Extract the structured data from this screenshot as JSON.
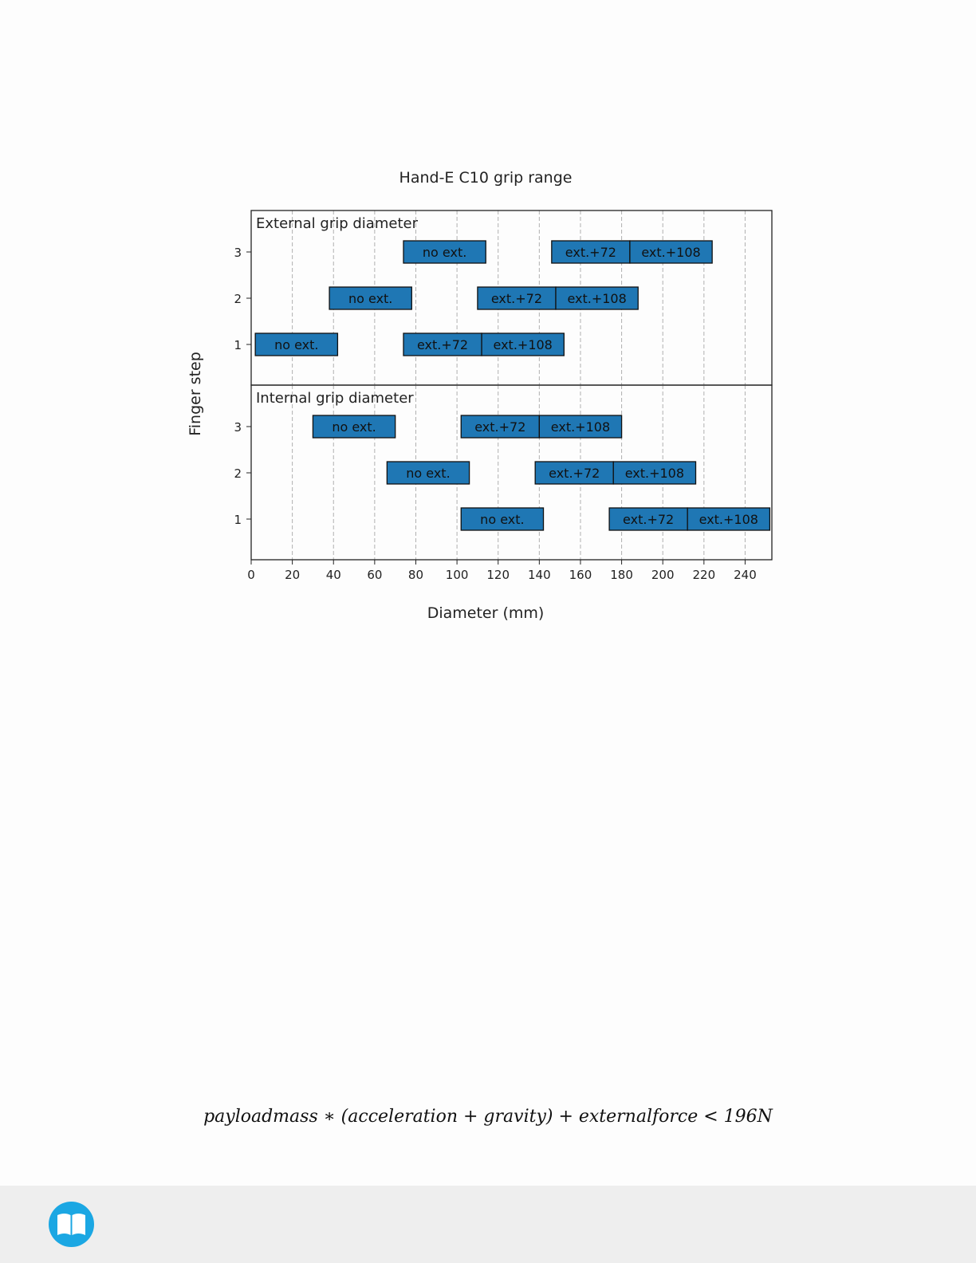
{
  "chart_data": {
    "type": "bar",
    "orientation": "horizontal-ranges",
    "title": "Hand-E C10 grip range",
    "xlabel": "Diameter (mm)",
    "ylabel": "Finger step",
    "xlim": [
      0,
      253
    ],
    "xticks": [
      0,
      20,
      40,
      60,
      80,
      100,
      120,
      140,
      160,
      180,
      200,
      220,
      240
    ],
    "yticks": [
      1,
      2,
      3
    ],
    "grid": "vertical dashed",
    "bar_color": "#1f77b4",
    "panels": [
      {
        "label": "External grip diameter",
        "bars": [
          {
            "step": 3,
            "start": 74,
            "end": 114,
            "label": "no ext."
          },
          {
            "step": 3,
            "start": 146,
            "end": 184,
            "label": "ext.+72"
          },
          {
            "step": 3,
            "start": 184,
            "end": 224,
            "label": "ext.+108"
          },
          {
            "step": 2,
            "start": 38,
            "end": 78,
            "label": "no ext."
          },
          {
            "step": 2,
            "start": 110,
            "end": 148,
            "label": "ext.+72"
          },
          {
            "step": 2,
            "start": 148,
            "end": 188,
            "label": "ext.+108"
          },
          {
            "step": 1,
            "start": 2,
            "end": 42,
            "label": "no ext."
          },
          {
            "step": 1,
            "start": 74,
            "end": 112,
            "label": "ext.+72"
          },
          {
            "step": 1,
            "start": 112,
            "end": 152,
            "label": "ext.+108"
          }
        ]
      },
      {
        "label": "Internal grip diameter",
        "bars": [
          {
            "step": 3,
            "start": 30,
            "end": 70,
            "label": "no ext."
          },
          {
            "step": 3,
            "start": 102,
            "end": 140,
            "label": "ext.+72"
          },
          {
            "step": 3,
            "start": 140,
            "end": 180,
            "label": "ext.+108"
          },
          {
            "step": 2,
            "start": 66,
            "end": 106,
            "label": "no ext."
          },
          {
            "step": 2,
            "start": 138,
            "end": 176,
            "label": "ext.+72"
          },
          {
            "step": 2,
            "start": 176,
            "end": 216,
            "label": "ext.+108"
          },
          {
            "step": 1,
            "start": 102,
            "end": 142,
            "label": "no ext."
          },
          {
            "step": 1,
            "start": 174,
            "end": 212,
            "label": "ext.+72"
          },
          {
            "step": 1,
            "start": 212,
            "end": 252,
            "label": "ext.+108"
          }
        ]
      }
    ]
  },
  "formula": "payloadmass ∗ (acceleration + gravity) + externalforce < 196N",
  "footer": {
    "logo_icon": "book-icon",
    "logo_color": "#1ba7e3"
  }
}
